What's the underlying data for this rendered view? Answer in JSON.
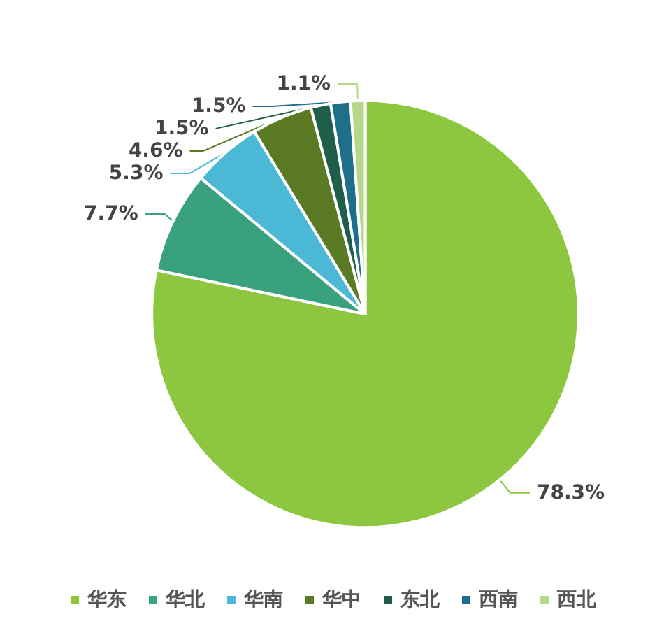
{
  "chart_data": {
    "type": "pie",
    "categories": [
      "华东",
      "华北",
      "华南",
      "华中",
      "东北",
      "西南",
      "西北"
    ],
    "values": [
      78.3,
      7.7,
      5.3,
      4.6,
      1.5,
      1.5,
      1.1
    ],
    "colors": [
      "#8dc63f",
      "#3aa17e",
      "#4bb8d6",
      "#5a7a24",
      "#1f5e4b",
      "#1e6f8a",
      "#b5d88a"
    ],
    "value_labels": [
      "78.3%",
      "7.7%",
      "5.3%",
      "4.6%",
      "1.5%",
      "1.5%",
      "1.1%"
    ],
    "legend": "bottom"
  }
}
